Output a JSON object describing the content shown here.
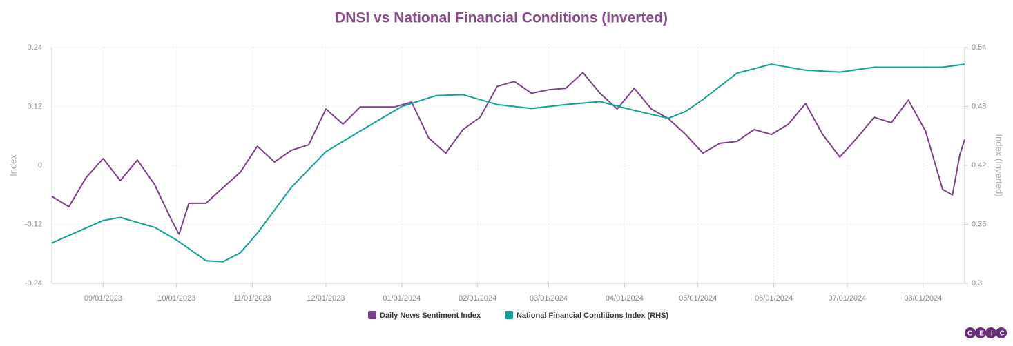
{
  "chart_data": {
    "type": "line",
    "title": "DNSI vs National Financial Conditions (Inverted)",
    "ylabel": "Index",
    "y2label": "Index (Inverted)",
    "xlim": [
      "08/11/2023",
      "08/18/2024"
    ],
    "xticks": [
      "09/01/2023",
      "10/01/2023",
      "11/01/2023",
      "12/01/2023",
      "01/01/2024",
      "02/01/2024",
      "03/01/2024",
      "04/01/2024",
      "05/01/2024",
      "06/01/2024",
      "07/01/2024",
      "08/01/2024"
    ],
    "ylim": [
      -0.24,
      0.24
    ],
    "yticks": [
      -0.24,
      -0.12,
      0,
      0.12,
      0.24
    ],
    "y2lim": [
      0.3,
      0.54
    ],
    "y2ticks": [
      0.3,
      0.36,
      0.42,
      0.48,
      0.54
    ],
    "grid": true,
    "legend": "bottom",
    "logo": "CEIC",
    "series": [
      {
        "name": "Daily News Sentiment Index",
        "color": "#7b3f8a",
        "x": [
          "08/11/2023",
          "08/18/2023",
          "08/25/2023",
          "09/01/2023",
          "09/08/2023",
          "09/15/2023",
          "09/22/2023",
          "09/29/2023",
          "10/02/2023",
          "10/06/2023",
          "10/13/2023",
          "10/20/2023",
          "10/27/2023",
          "11/03/2023",
          "11/10/2023",
          "11/17/2023",
          "11/24/2023",
          "12/01/2023",
          "12/08/2023",
          "12/15/2023",
          "12/22/2023",
          "12/29/2023",
          "01/05/2024",
          "01/12/2024",
          "01/19/2024",
          "01/26/2024",
          "02/02/2024",
          "02/09/2024",
          "02/16/2024",
          "02/23/2024",
          "03/01/2024",
          "03/08/2024",
          "03/15/2024",
          "03/22/2024",
          "03/29/2024",
          "04/05/2024",
          "04/12/2024",
          "04/19/2024",
          "04/26/2024",
          "05/03/2024",
          "05/10/2024",
          "05/17/2024",
          "05/24/2024",
          "05/31/2024",
          "06/07/2024",
          "06/14/2024",
          "06/21/2024",
          "06/28/2024",
          "07/05/2024",
          "07/12/2024",
          "07/19/2024",
          "07/26/2024",
          "08/02/2024",
          "08/09/2024",
          "08/13/2024",
          "08/16/2024",
          "08/18/2024"
        ],
        "values": [
          -0.063,
          -0.084,
          -0.025,
          0.014,
          -0.031,
          0.011,
          -0.039,
          -0.112,
          -0.14,
          -0.077,
          -0.077,
          -0.045,
          -0.014,
          0.039,
          0.007,
          0.031,
          0.042,
          0.115,
          0.084,
          0.119,
          0.119,
          0.119,
          0.129,
          0.056,
          0.025,
          0.073,
          0.098,
          0.161,
          0.171,
          0.147,
          0.154,
          0.157,
          0.189,
          0.147,
          0.115,
          0.157,
          0.115,
          0.095,
          0.063,
          0.025,
          0.045,
          0.049,
          0.073,
          0.063,
          0.084,
          0.126,
          0.063,
          0.017,
          0.056,
          0.098,
          0.087,
          0.133,
          0.07,
          -0.049,
          -0.06,
          0.021,
          0.053
        ]
      },
      {
        "name": "National Financial Conditions Index (RHS)",
        "color": "#12a098",
        "axis": "y2",
        "x": [
          "08/11/2023",
          "09/01/2023",
          "09/08/2023",
          "09/22/2023",
          "10/01/2023",
          "10/13/2023",
          "10/20/2023",
          "10/27/2023",
          "11/03/2023",
          "11/17/2023",
          "12/01/2023",
          "12/15/2023",
          "01/01/2024",
          "01/15/2024",
          "01/26/2024",
          "02/09/2024",
          "02/23/2024",
          "03/08/2024",
          "03/22/2024",
          "04/05/2024",
          "04/19/2024",
          "04/26/2024",
          "05/03/2024",
          "05/17/2024",
          "05/31/2024",
          "06/14/2024",
          "06/28/2024",
          "07/12/2024",
          "07/26/2024",
          "08/09/2024",
          "08/18/2024"
        ],
        "values": [
          0.341,
          0.364,
          0.367,
          0.357,
          0.344,
          0.323,
          0.322,
          0.331,
          0.351,
          0.398,
          0.434,
          0.455,
          0.48,
          0.491,
          0.492,
          0.482,
          0.478,
          0.482,
          0.485,
          0.476,
          0.468,
          0.475,
          0.487,
          0.514,
          0.523,
          0.517,
          0.515,
          0.52,
          0.52,
          0.52,
          0.523
        ]
      }
    ]
  }
}
